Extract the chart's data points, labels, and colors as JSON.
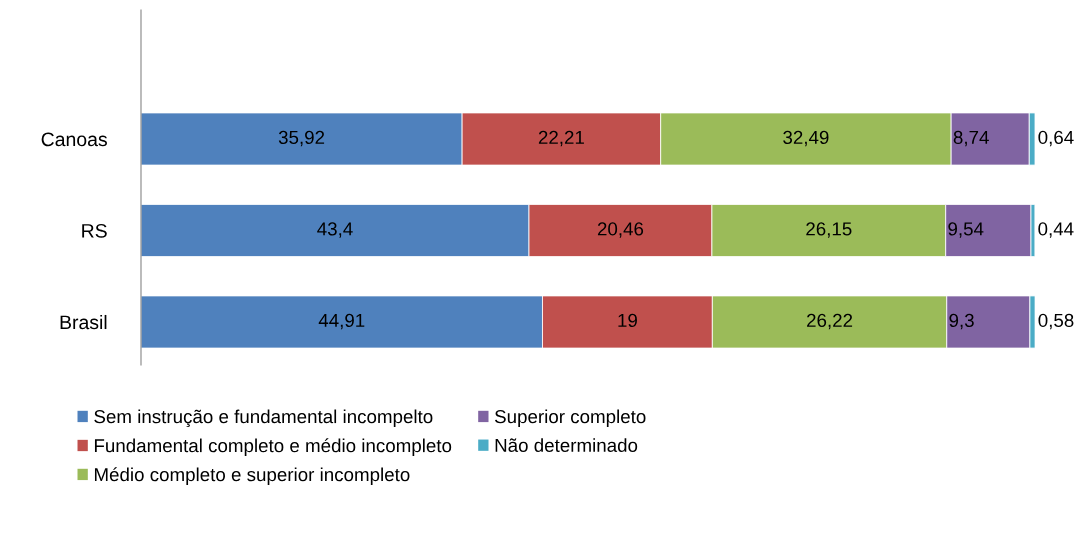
{
  "chart_data": {
    "type": "bar",
    "orientation": "horizontal",
    "stacked": true,
    "categories": [
      "Canoas",
      "RS",
      "Brasil"
    ],
    "series": [
      {
        "name": "Sem instrução e fundamental incompelto",
        "color": "#4f81bd",
        "values": [
          35.92,
          43.4,
          44.91
        ],
        "value_labels": [
          "35,92",
          "43,4",
          "44,91"
        ]
      },
      {
        "name": "Fundamental completo e médio incompleto",
        "color": "#c0504d",
        "values": [
          22.21,
          20.46,
          19
        ],
        "value_labels": [
          "22,21",
          "20,46",
          "19"
        ]
      },
      {
        "name": "Médio completo e superior incompleto",
        "color": "#9bbb59",
        "values": [
          32.49,
          26.15,
          26.22
        ],
        "value_labels": [
          "32,49",
          "26,15",
          "26,22"
        ]
      },
      {
        "name": "Superior completo",
        "color": "#8064a2",
        "values": [
          8.74,
          9.54,
          9.3
        ],
        "value_labels": [
          "8,74",
          "9,54",
          "9,3"
        ]
      },
      {
        "name": "Não determinado",
        "color": "#4bacc6",
        "values": [
          0.64,
          0.44,
          0.58
        ],
        "value_labels": [
          "0,64",
          "0,44",
          "0,58"
        ]
      }
    ],
    "xlim": [
      0,
      100
    ],
    "tick_labels": "y",
    "grid": false,
    "legend": "bottom"
  }
}
